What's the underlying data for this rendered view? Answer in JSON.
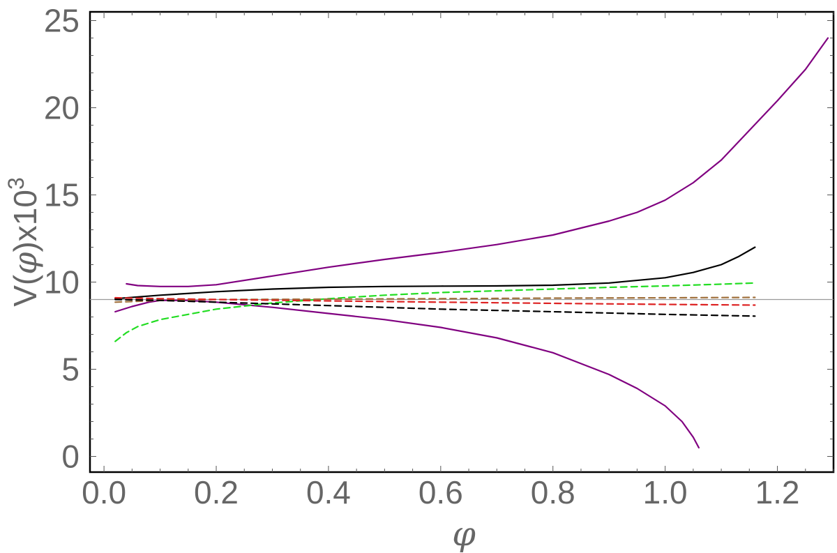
{
  "chart_data": {
    "type": "line",
    "xlabel": "φ",
    "ylabel": {
      "main": "V(",
      "var": "φ",
      "tail": ")x10",
      "exp": "3"
    },
    "xlim": [
      -0.025,
      1.3
    ],
    "ylim": [
      -0.9,
      25.5
    ],
    "x_ticks": [
      0.0,
      0.2,
      0.4,
      0.6,
      0.8,
      1.0,
      1.2
    ],
    "x_tick_labels": [
      "0.0",
      "0.2",
      "0.4",
      "0.6",
      "0.8",
      "1.0",
      "1.2"
    ],
    "y_ticks": [
      0,
      5,
      10,
      15,
      20,
      25
    ],
    "y_tick_labels": [
      "0",
      "5",
      "10",
      "15",
      "20",
      "25"
    ],
    "grid": false,
    "reference_line": {
      "y": 9.0,
      "color": "#999999"
    },
    "series": [
      {
        "color": "#800080",
        "style": "solid",
        "x": [
          0.04,
          0.06,
          0.1,
          0.15,
          0.2,
          0.3,
          0.4,
          0.5,
          0.6,
          0.7,
          0.8,
          0.9,
          0.95,
          1.0,
          1.05,
          1.1,
          1.15,
          1.2,
          1.25,
          1.29
        ],
        "y": [
          9.9,
          9.8,
          9.75,
          9.75,
          9.85,
          10.35,
          10.85,
          11.3,
          11.7,
          12.15,
          12.7,
          13.5,
          14.0,
          14.7,
          15.7,
          17.0,
          18.7,
          20.4,
          22.2,
          24.0
        ]
      },
      {
        "color": "#800080",
        "style": "solid",
        "x": [
          0.02,
          0.05,
          0.08,
          0.1,
          0.15,
          0.2,
          0.3,
          0.4,
          0.5,
          0.6,
          0.7,
          0.8,
          0.9,
          0.95,
          1.0,
          1.03,
          1.05,
          1.06
        ],
        "y": [
          8.3,
          8.6,
          8.85,
          8.95,
          8.95,
          8.85,
          8.55,
          8.2,
          7.85,
          7.4,
          6.8,
          5.95,
          4.7,
          3.9,
          2.9,
          2.0,
          1.1,
          0.5
        ]
      },
      {
        "color": "#000000",
        "style": "solid",
        "x": [
          0.02,
          0.1,
          0.2,
          0.3,
          0.4,
          0.5,
          0.6,
          0.7,
          0.8,
          0.9,
          1.0,
          1.05,
          1.1,
          1.13,
          1.16
        ],
        "y": [
          9.05,
          9.25,
          9.45,
          9.6,
          9.7,
          9.75,
          9.77,
          9.78,
          9.82,
          9.95,
          10.25,
          10.55,
          11.0,
          11.45,
          12.0
        ]
      },
      {
        "color": "#22dd22",
        "style": "dashed",
        "x": [
          0.02,
          0.04,
          0.06,
          0.1,
          0.15,
          0.2,
          0.3,
          0.4,
          0.5,
          0.6,
          0.7,
          0.8,
          0.9,
          1.0,
          1.1,
          1.16
        ],
        "y": [
          6.6,
          7.1,
          7.45,
          7.85,
          8.15,
          8.45,
          8.8,
          9.05,
          9.25,
          9.4,
          9.5,
          9.6,
          9.7,
          9.78,
          9.88,
          9.95
        ]
      },
      {
        "color": "#a0703c",
        "style": "dashed",
        "x": [
          0.02,
          0.1,
          0.2,
          0.4,
          0.6,
          0.8,
          1.0,
          1.16
        ],
        "y": [
          8.85,
          8.95,
          9.0,
          9.02,
          9.05,
          9.08,
          9.1,
          9.12
        ]
      },
      {
        "color": "#dd2222",
        "style": "dashed",
        "x": [
          0.02,
          0.1,
          0.2,
          0.4,
          0.6,
          0.8,
          1.0,
          1.16
        ],
        "y": [
          9.1,
          9.05,
          9.0,
          8.92,
          8.85,
          8.78,
          8.72,
          8.68
        ]
      },
      {
        "color": "#000000",
        "style": "dashed",
        "x": [
          0.02,
          0.1,
          0.2,
          0.4,
          0.6,
          0.8,
          1.0,
          1.16
        ],
        "y": [
          9.0,
          8.95,
          8.85,
          8.65,
          8.45,
          8.3,
          8.15,
          8.05
        ]
      }
    ]
  }
}
